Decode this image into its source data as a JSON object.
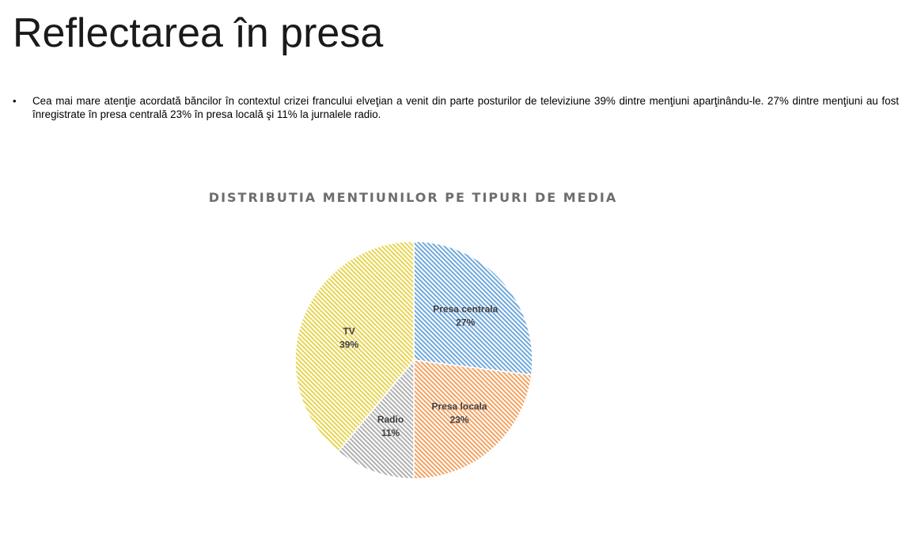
{
  "slide": {
    "title": "Reflectarea în presa",
    "bullet_symbol": "•",
    "bullet_text": "Cea mai mare atenţie acordată băncilor în contextul crizei francului elveţian a venit din parte posturilor de televiziune 39% dintre menţiuni aparţinându-le. 27% dintre menţiuni au fost înregistrate în presa centrală 23% în presa locală şi 11% la jurnalele radio."
  },
  "chart_data": {
    "type": "pie",
    "title": "DISTRIBUTIA MENTIUNILOR PE TIPURI DE MEDIA",
    "start_angle_deg": 0,
    "direction": "clockwise",
    "fill_style": "diagonal-hatch",
    "slices": [
      {
        "label": "Presa centrala",
        "value": 27,
        "value_label": "27%",
        "color": "#6fa8dc",
        "pattern_id": "hatch-blue"
      },
      {
        "label": "Presa locala",
        "value": 23,
        "value_label": "23%",
        "color": "#f4a261",
        "pattern_id": "hatch-orange"
      },
      {
        "label": "Radio",
        "value": 11,
        "value_label": "11%",
        "color": "#b0b0b0",
        "pattern_id": "hatch-gray"
      },
      {
        "label": "TV",
        "value": 39,
        "value_label": "39%",
        "color": "#e8d44d",
        "pattern_id": "hatch-yellow"
      }
    ]
  }
}
